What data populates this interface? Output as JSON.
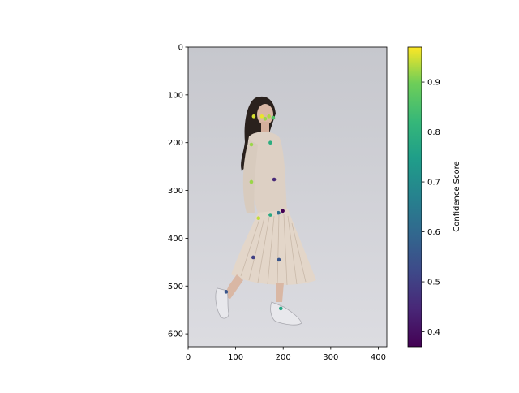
{
  "chart_data": {
    "type": "scatter",
    "background": "photo-of-woman-walking",
    "title": "",
    "xlabel": "",
    "ylabel": "",
    "xlim": [
      0,
      418
    ],
    "ylim": [
      627,
      0
    ],
    "x_ticks": [
      0,
      100,
      200,
      300,
      400
    ],
    "y_ticks": [
      0,
      100,
      200,
      300,
      400,
      500,
      600
    ],
    "colorbar": {
      "label": "Confidence Score",
      "range": [
        0.37,
        0.97
      ],
      "ticks": [
        0.4,
        0.5,
        0.6,
        0.7,
        0.8,
        0.9
      ],
      "colormap": "viridis"
    },
    "points": [
      {
        "x": 138,
        "y": 145,
        "score": 0.95
      },
      {
        "x": 155,
        "y": 145,
        "score": 0.96
      },
      {
        "x": 162,
        "y": 150,
        "score": 0.92
      },
      {
        "x": 170,
        "y": 145,
        "score": 0.93
      },
      {
        "x": 179,
        "y": 148,
        "score": 0.86
      },
      {
        "x": 133,
        "y": 204,
        "score": 0.92
      },
      {
        "x": 173,
        "y": 200,
        "score": 0.79
      },
      {
        "x": 133,
        "y": 282,
        "score": 0.92
      },
      {
        "x": 181,
        "y": 277,
        "score": 0.45
      },
      {
        "x": 148,
        "y": 358,
        "score": 0.94
      },
      {
        "x": 173,
        "y": 351,
        "score": 0.78
      },
      {
        "x": 190,
        "y": 347,
        "score": 0.62
      },
      {
        "x": 199,
        "y": 343,
        "score": 0.37
      },
      {
        "x": 137,
        "y": 440,
        "score": 0.5
      },
      {
        "x": 191,
        "y": 445,
        "score": 0.55
      },
      {
        "x": 80,
        "y": 512,
        "score": 0.55
      },
      {
        "x": 195,
        "y": 547,
        "score": 0.77
      }
    ]
  }
}
